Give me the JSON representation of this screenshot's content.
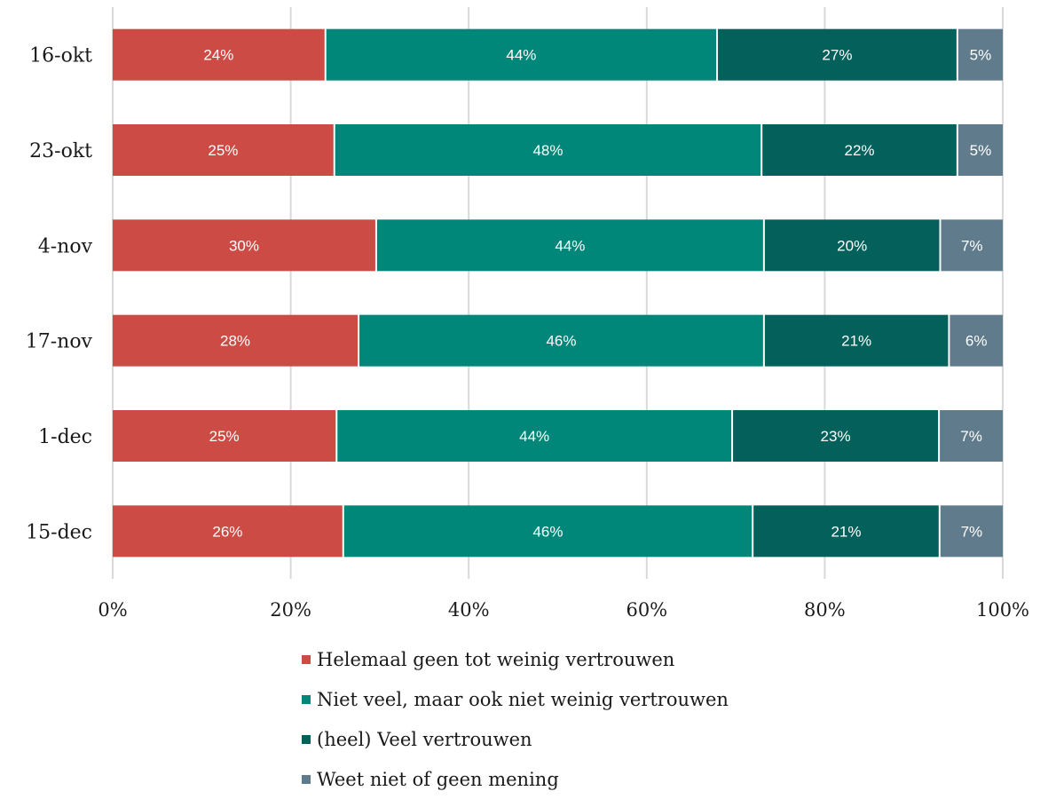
{
  "chart_data": {
    "type": "bar",
    "orientation": "horizontal",
    "stacked": true,
    "categories": [
      "16-okt",
      "23-okt",
      "4-nov",
      "17-nov",
      "1-dec",
      "15-dec"
    ],
    "series": [
      {
        "name": "Helemaal geen tot weinig vertrouwen",
        "color": "#cc4c45",
        "values": [
          24,
          25,
          30,
          28,
          25,
          26
        ]
      },
      {
        "name": "Niet veel, maar ook niet weinig vertrouwen",
        "color": "#00877a",
        "values": [
          44,
          48,
          44,
          46,
          44,
          46
        ]
      },
      {
        "name": "(heel) Veel vertrouwen",
        "color": "#03605a",
        "values": [
          27,
          22,
          20,
          21,
          23,
          21
        ]
      },
      {
        "name": "Weet niet of geen mening",
        "color": "#5f7b8c",
        "values": [
          5,
          5,
          7,
          6,
          7,
          7
        ]
      }
    ],
    "x_ticks": [
      "0%",
      "20%",
      "40%",
      "60%",
      "80%",
      "100%"
    ],
    "xlim": [
      0,
      100
    ],
    "value_suffix": "%",
    "grid": true,
    "legend_position": "bottom"
  }
}
